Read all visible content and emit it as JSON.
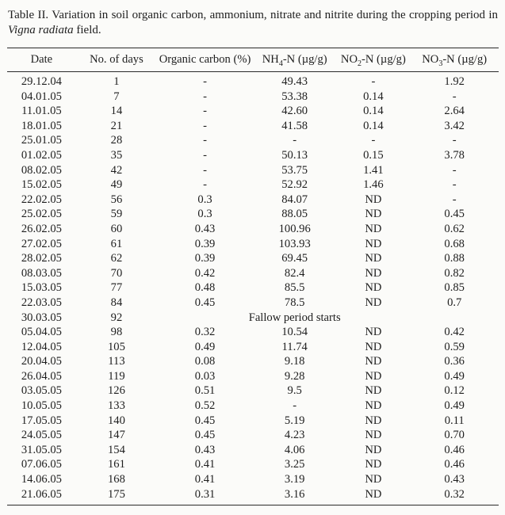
{
  "title": {
    "prefix": "Table II. Variation in soil organic carbon, ammonium, nitrate and nitrite during the cropping period in ",
    "italic": "Vigna radiata",
    "suffix": " field."
  },
  "table": {
    "headers": [
      [
        "Date"
      ],
      [
        "No. of days"
      ],
      [
        "Organic carbon (%)"
      ],
      [
        "NH",
        {
          "sub": "4"
        },
        "-N (µg/g)"
      ],
      [
        "NO",
        {
          "sub": "2"
        },
        "-N (µg/g)"
      ],
      [
        "NO",
        {
          "sub": "3"
        },
        "-N (µg/g)"
      ]
    ],
    "fallow_row_index": 16,
    "rows": [
      [
        "29.12.04",
        "1",
        "-",
        "49.43",
        "-",
        "1.92"
      ],
      [
        "04.01.05",
        "7",
        "-",
        "53.38",
        "0.14",
        "-"
      ],
      [
        "11.01.05",
        "14",
        "-",
        "42.60",
        "0.14",
        "2.64"
      ],
      [
        "18.01.05",
        "21",
        "-",
        "41.58",
        "0.14",
        "3.42"
      ],
      [
        "25.01.05",
        "28",
        "-",
        "-",
        "-",
        "-"
      ],
      [
        "01.02.05",
        "35",
        "-",
        "50.13",
        "0.15",
        "3.78"
      ],
      [
        "08.02.05",
        "42",
        "-",
        "53.75",
        "1.41",
        "-"
      ],
      [
        "15.02.05",
        "49",
        "-",
        "52.92",
        "1.46",
        "-"
      ],
      [
        "22.02.05",
        "56",
        "0.3",
        "84.07",
        "ND",
        "-"
      ],
      [
        "25.02.05",
        "59",
        "0.3",
        "88.05",
        "ND",
        "0.45"
      ],
      [
        "26.02.05",
        "60",
        "0.43",
        "100.96",
        "ND",
        "0.62"
      ],
      [
        "27.02.05",
        "61",
        "0.39",
        "103.93",
        "ND",
        "0.68"
      ],
      [
        "28.02.05",
        "62",
        "0.39",
        "69.45",
        "ND",
        "0.88"
      ],
      [
        "08.03.05",
        "70",
        "0.42",
        "82.4",
        "ND",
        "0.82"
      ],
      [
        "15.03.05",
        "77",
        "0.48",
        "85.5",
        "ND",
        "0.85"
      ],
      [
        "22.03.05",
        "84",
        "0.45",
        "78.5",
        "ND",
        "0.7"
      ],
      [
        "30.03.05",
        "92",
        "",
        "Fallow period starts",
        "",
        ""
      ],
      [
        "05.04.05",
        "98",
        "0.32",
        "10.54",
        "ND",
        "0.42"
      ],
      [
        "12.04.05",
        "105",
        "0.49",
        "11.74",
        "ND",
        "0.59"
      ],
      [
        "20.04.05",
        "113",
        "0.08",
        "9.18",
        "ND",
        "0.36"
      ],
      [
        "26.04.05",
        "119",
        "0.03",
        "9.28",
        "ND",
        "0.49"
      ],
      [
        "03.05.05",
        "126",
        "0.51",
        "9.5",
        "ND",
        "0.12"
      ],
      [
        "10.05.05",
        "133",
        "0.52",
        "-",
        "ND",
        "0.49"
      ],
      [
        "17.05.05",
        "140",
        "0.45",
        "5.19",
        "ND",
        "0.11"
      ],
      [
        "24.05.05",
        "147",
        "0.45",
        "4.23",
        "ND",
        "0.70"
      ],
      [
        "31.05.05",
        "154",
        "0.43",
        "4.06",
        "ND",
        "0.46"
      ],
      [
        "07.06.05",
        "161",
        "0.41",
        "3.25",
        "ND",
        "0.46"
      ],
      [
        "14.06.05",
        "168",
        "0.41",
        "3.19",
        "ND",
        "0.43"
      ],
      [
        "21.06.05",
        "175",
        "0.31",
        "3.16",
        "ND",
        "0.32"
      ]
    ]
  },
  "colors": {
    "background": "#fbfbf9",
    "text": "#1e1e1e",
    "rule": "#2a2a2a"
  }
}
